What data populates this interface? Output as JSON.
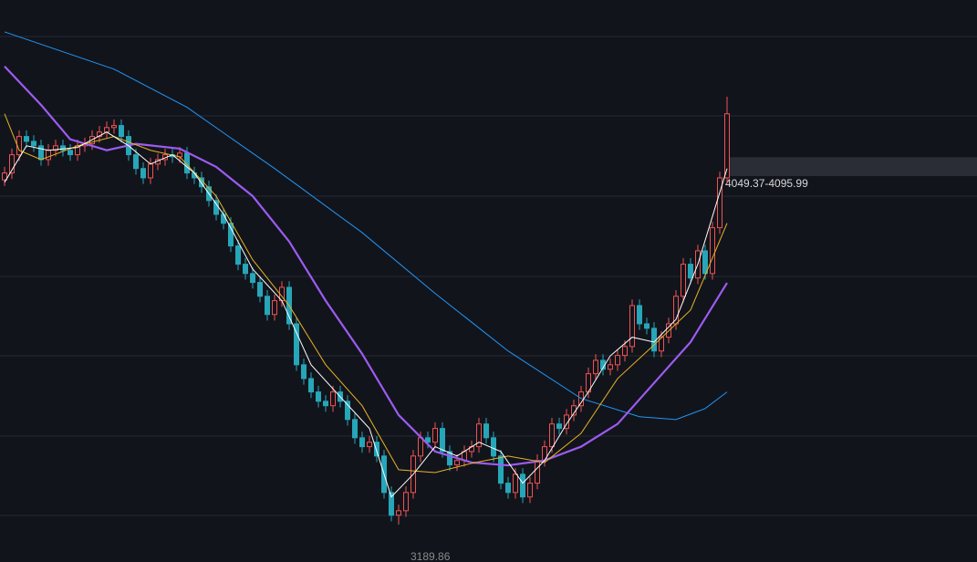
{
  "chart_data": {
    "type": "candlestick",
    "ylim": [
      3097.6,
      4483.6
    ],
    "up_color": "#ef5350",
    "down_color": "#26a6b8",
    "open": [
      4040,
      4057,
      4102,
      4147,
      4135,
      4124,
      4090,
      4113,
      4124,
      4113,
      4102,
      4124,
      4129,
      4147,
      4158,
      4169,
      4174,
      4147,
      4102,
      4068,
      4045,
      4079,
      4090,
      4102,
      4097,
      4106,
      4057,
      4045,
      4023,
      3989,
      3955,
      3933,
      3877,
      3832,
      3809,
      3787,
      3753,
      3708,
      3742,
      3775,
      3685,
      3584,
      3550,
      3517,
      3494,
      3483,
      3517,
      3494,
      3449,
      3404,
      3382,
      3393,
      3359,
      3269,
      3213,
      3224,
      3269,
      3359,
      3404,
      3393,
      3427,
      3370,
      3337,
      3348,
      3370,
      3382,
      3438,
      3404,
      3359,
      3292,
      3269,
      3314,
      3258,
      3292,
      3348,
      3382,
      3438,
      3427,
      3460,
      3483,
      3517,
      3562,
      3595,
      3573,
      3584,
      3607,
      3629,
      3730,
      3685,
      3674,
      3618,
      3652,
      3685,
      3753,
      3832,
      3798,
      3865,
      3809,
      3922,
      4045
    ],
    "high": [
      4072,
      4117,
      4162,
      4162,
      4150,
      4139,
      4128,
      4139,
      4139,
      4128,
      4139,
      4144,
      4162,
      4173,
      4184,
      4189,
      4189,
      4162,
      4117,
      4083,
      4094,
      4105,
      4117,
      4117,
      4121,
      4121,
      4072,
      4060,
      4038,
      4004,
      3970,
      3948,
      3892,
      3847,
      3824,
      3802,
      3768,
      3757,
      3790,
      3790,
      3700,
      3599,
      3565,
      3532,
      3509,
      3532,
      3532,
      3509,
      3464,
      3419,
      3408,
      3408,
      3374,
      3284,
      3239,
      3284,
      3374,
      3419,
      3419,
      3442,
      3442,
      3385,
      3363,
      3385,
      3397,
      3453,
      3453,
      3419,
      3374,
      3307,
      3329,
      3329,
      3307,
      3363,
      3397,
      3453,
      3453,
      3475,
      3498,
      3532,
      3577,
      3610,
      3610,
      3599,
      3622,
      3644,
      3745,
      3745,
      3700,
      3689,
      3667,
      3700,
      3768,
      3847,
      3847,
      3880,
      3880,
      3937,
      4060,
      4245
    ],
    "low": [
      4025,
      4042,
      4087,
      4120,
      4109,
      4075,
      4075,
      4098,
      4098,
      4087,
      4087,
      4109,
      4114,
      4132,
      4143,
      4154,
      4132,
      4087,
      4053,
      4030,
      4030,
      4064,
      4075,
      4082,
      4082,
      4042,
      4030,
      4008,
      3974,
      3940,
      3918,
      3862,
      3817,
      3794,
      3772,
      3738,
      3693,
      3693,
      3727,
      3670,
      3569,
      3535,
      3502,
      3479,
      3468,
      3468,
      3479,
      3434,
      3389,
      3367,
      3367,
      3344,
      3254,
      3198,
      3189.86,
      3209,
      3254,
      3344,
      3378,
      3378,
      3355,
      3322,
      3322,
      3333,
      3355,
      3367,
      3389,
      3344,
      3277,
      3254,
      3254,
      3243,
      3243,
      3277,
      3333,
      3367,
      3412,
      3412,
      3445,
      3468,
      3502,
      3547,
      3558,
      3558,
      3569,
      3592,
      3614,
      3670,
      3659,
      3603,
      3603,
      3637,
      3670,
      3738,
      3783,
      3783,
      3794,
      3794,
      3907,
      4030
    ],
    "close": [
      4057,
      4102,
      4147,
      4135,
      4124,
      4090,
      4113,
      4124,
      4113,
      4102,
      4124,
      4129,
      4147,
      4158,
      4169,
      4174,
      4147,
      4102,
      4068,
      4045,
      4079,
      4090,
      4102,
      4097,
      4106,
      4057,
      4045,
      4023,
      3989,
      3955,
      3933,
      3877,
      3832,
      3809,
      3787,
      3753,
      3708,
      3742,
      3775,
      3685,
      3584,
      3550,
      3517,
      3494,
      3483,
      3517,
      3494,
      3449,
      3404,
      3382,
      3393,
      3359,
      3269,
      3213,
      3224,
      3269,
      3359,
      3404,
      3393,
      3427,
      3370,
      3337,
      3348,
      3370,
      3382,
      3438,
      3404,
      3359,
      3292,
      3269,
      3314,
      3258,
      3292,
      3348,
      3382,
      3438,
      3427,
      3460,
      3483,
      3517,
      3562,
      3595,
      3573,
      3584,
      3607,
      3629,
      3730,
      3685,
      3674,
      3618,
      3652,
      3685,
      3753,
      3832,
      3798,
      3865,
      3809,
      3922,
      4045,
      4203
    ],
    "lines": [
      {
        "color": "#2196f3",
        "width": 1,
        "x": [
          0,
          15,
          25,
          37,
          49,
          59,
          69,
          79,
          87,
          92,
          96,
          99
        ],
        "values": [
          4405,
          4313,
          4219,
          4068,
          3910,
          3760,
          3618,
          3501,
          3456,
          3449,
          3476,
          3517
        ]
      },
      {
        "color": "#9c5cf0",
        "width": 2.2,
        "x": [
          0,
          5,
          9,
          14,
          18,
          24,
          29,
          34,
          39,
          44,
          49,
          54,
          59,
          64,
          69,
          74,
          79,
          84,
          89,
          94,
          99
        ],
        "values": [
          4320,
          4225,
          4140,
          4113,
          4129,
          4117,
          4072,
          4000,
          3888,
          3742,
          3611,
          3460,
          3370,
          3343,
          3336,
          3348,
          3382,
          3438,
          3539,
          3640,
          3786
        ]
      },
      {
        "color": "#e6b422",
        "width": 1,
        "x": [
          0,
          2,
          5,
          10,
          15,
          20,
          24,
          29,
          34,
          39,
          44,
          49,
          54,
          59,
          64,
          69,
          74,
          79,
          84,
          89,
          94,
          99
        ],
        "values": [
          4203,
          4113,
          4090,
          4124,
          4147,
          4113,
          4097,
          4000,
          3843,
          3730,
          3584,
          3483,
          3325,
          3318,
          3341,
          3359,
          3343,
          3415,
          3550,
          3633,
          3719,
          3933
        ]
      },
      {
        "color": "#ffffff",
        "width": 1,
        "x": [
          0,
          3,
          6,
          10,
          14,
          17,
          20,
          23,
          26,
          30,
          34,
          38,
          42,
          46,
          50,
          53,
          56,
          59,
          62,
          65,
          68,
          71,
          74,
          77,
          80,
          83,
          86,
          89,
          92,
          95,
          99
        ],
        "values": [
          4034,
          4124,
          4113,
          4120,
          4158,
          4124,
          4079,
          4102,
          4057,
          3955,
          3820,
          3742,
          3584,
          3505,
          3427,
          3258,
          3314,
          3382,
          3359,
          3393,
          3370,
          3292,
          3348,
          3438,
          3517,
          3606,
          3652,
          3640,
          3696,
          3832,
          4068
        ]
      }
    ],
    "range_label": {
      "low": 4049.37,
      "high": 4095.99,
      "label": "4049.37-4095.99"
    },
    "low_label": 3189.86
  }
}
